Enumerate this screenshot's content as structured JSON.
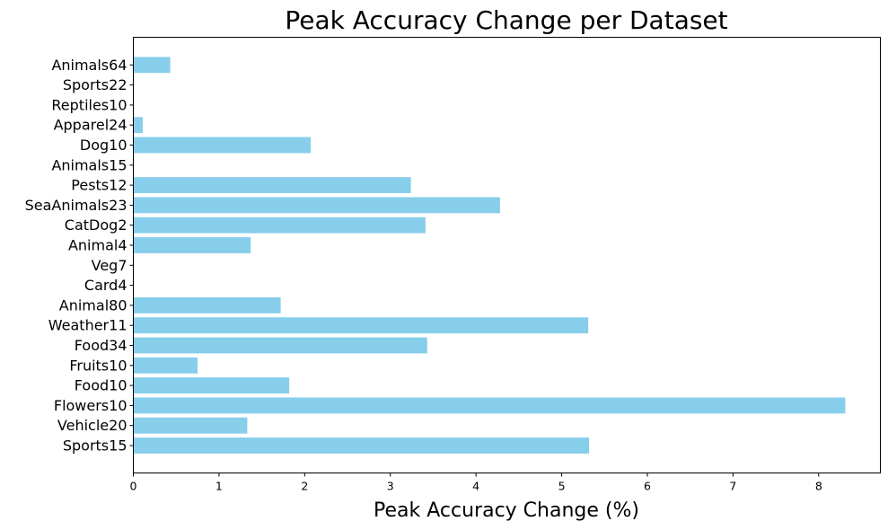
{
  "chart_data": {
    "type": "bar",
    "orientation": "horizontal",
    "title": "Peak Accuracy Change per Dataset",
    "xlabel": "Peak Accuracy Change (%)",
    "ylabel": "",
    "categories": [
      "Sports15",
      "Vehicle20",
      "Flowers10",
      "Food10",
      "Fruits10",
      "Food34",
      "Weather11",
      "Animal80",
      "Card4",
      "Veg7",
      "Animal4",
      "CatDog2",
      "SeaAnimals23",
      "Pests12",
      "Animals15",
      "Dog10",
      "Apparel24",
      "Reptiles10",
      "Sports22",
      "Animals64"
    ],
    "values": [
      5.32,
      1.33,
      8.31,
      1.82,
      0.75,
      3.43,
      5.31,
      1.72,
      0.0,
      0.0,
      1.37,
      3.41,
      4.28,
      3.24,
      0.0,
      2.07,
      0.11,
      0.0,
      0.0,
      0.43
    ],
    "xlim": [
      0,
      8.72
    ],
    "xticks": [
      0,
      1,
      2,
      3,
      4,
      5,
      6,
      7,
      8
    ],
    "bar_color": "#87CEEB",
    "grid": false
  }
}
